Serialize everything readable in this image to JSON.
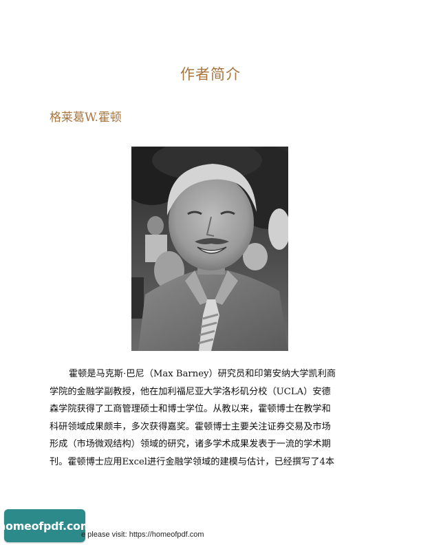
{
  "page": {
    "title": "作者简介",
    "author_name": "格莱葛W.霍顿"
  },
  "photo": {
    "background_color": "#3e3e3e",
    "face_color": "#9a9a9a"
  },
  "body": {
    "lines": [
      "霍顿是马克斯·巴尼（Max Barney）研究员和印第安纳大学凯利商",
      "学院的金融学副教授，他在加利福尼亚大学洛杉矶分校（UCLA）安德",
      "森学院获得了工商管理硕士和博士学位。从教以来，霍顿博士在教学和",
      "科研领域成果颇丰，多次获得嘉奖。霍顿博士主要关注证券交易及市场",
      "形成（市场微观结构）领域的研究，诸多学术成果发表于一流的学术期",
      "刊。霍顿博士应用Excel进行金融学领域的建模与估计，已经撰写了4本"
    ]
  },
  "watermark": {
    "label": "homeofpdf.com",
    "color": "#2d8a8a"
  },
  "footer": {
    "text": "e please visit: https://homeofpdf.com"
  },
  "colors": {
    "heading": "#a9753f",
    "text": "#111111"
  }
}
